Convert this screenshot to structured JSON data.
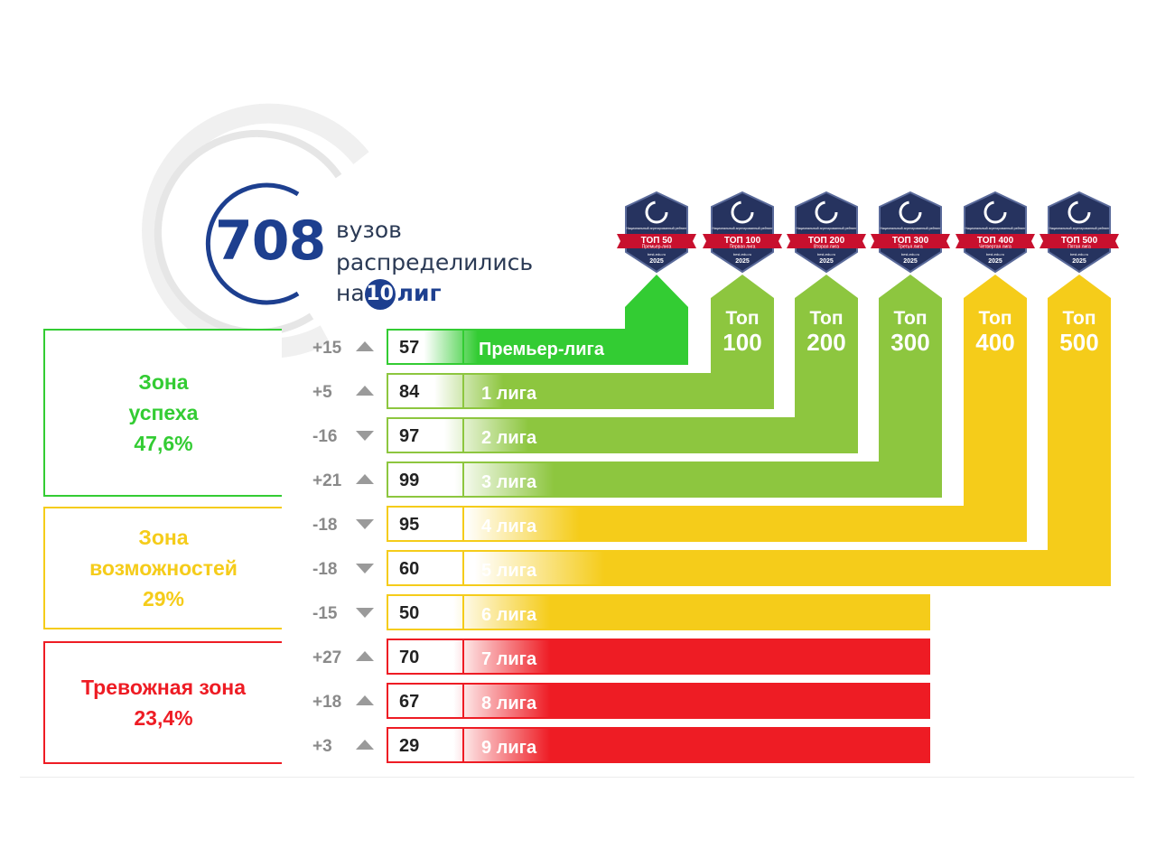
{
  "headline": {
    "total": "708",
    "line1": "вузов",
    "line2": "распределились",
    "line3_prefix": "на",
    "leagues_count": "10",
    "line3_suffix": "лиг"
  },
  "zones": [
    {
      "id": "success",
      "lines": [
        "Зона",
        "успеха",
        "47,6%"
      ],
      "color": "#33cc33"
    },
    {
      "id": "opportunity",
      "lines": [
        "Зона",
        "возможностей",
        "29%"
      ],
      "color": "#f5cc1a"
    },
    {
      "id": "alarm",
      "lines": [
        "Тревожная зона",
        "23,4%"
      ],
      "color": "#ee1c24"
    }
  ],
  "badges": [
    {
      "top": "ТОП 50",
      "league": "Премьер-лига",
      "year": "2025"
    },
    {
      "top": "ТОП 100",
      "league": "Первая лига",
      "year": "2025"
    },
    {
      "top": "ТОП 200",
      "league": "Вторая лига",
      "year": "2025"
    },
    {
      "top": "ТОП 300",
      "league": "Третья лига",
      "year": "2025"
    },
    {
      "top": "ТОП 400",
      "league": "Четвертая лига",
      "year": "2025"
    },
    {
      "top": "ТОП 500",
      "league": "Пятая лига",
      "year": "2025"
    }
  ],
  "badge_header": "Национальный агрегированный рейтинг",
  "badge_site": "best-edu.ru",
  "tops": [
    {
      "word": "Топ",
      "num": "100",
      "color": "#8dc63f"
    },
    {
      "word": "Топ",
      "num": "200",
      "color": "#8dc63f"
    },
    {
      "word": "Топ",
      "num": "300",
      "color": "#8dc63f"
    },
    {
      "word": "Топ",
      "num": "400",
      "color": "#f5cc1a"
    },
    {
      "word": "Топ",
      "num": "500",
      "color": "#f5cc1a"
    }
  ],
  "chart_data": {
    "type": "bar",
    "title": "708 вузов распределились на 10 лиг",
    "categories": [
      "Премьер-лига",
      "1 лига",
      "2 лига",
      "3 лига",
      "4 лига",
      "5 лига",
      "6 лига",
      "7 лига",
      "8 лига",
      "9 лига"
    ],
    "values": [
      57,
      84,
      97,
      99,
      95,
      60,
      50,
      70,
      67,
      29
    ],
    "change_labels": [
      "+15",
      "+5",
      "-16",
      "+21",
      "-18",
      "-18",
      "-15",
      "+27",
      "+18",
      "+3"
    ],
    "change_direction": [
      "up",
      "up",
      "down",
      "up",
      "down",
      "down",
      "down",
      "up",
      "up",
      "up"
    ],
    "colors": [
      "#33cc33",
      "#8dc63f",
      "#8dc63f",
      "#8dc63f",
      "#f5cc1a",
      "#f5cc1a",
      "#f5cc1a",
      "#ee1c24",
      "#ee1c24",
      "#ee1c24"
    ],
    "zones": [
      "Зона успеха",
      "Зона успеха",
      "Зона успеха",
      "Зона успеха",
      "Зона возможностей",
      "Зона возможностей",
      "Зона возможностей",
      "Тревожная зона",
      "Тревожная зона",
      "Тревожная зона"
    ],
    "xlabel": "",
    "ylabel": ""
  },
  "colors": {
    "navy": "#1d3f8f",
    "green": "#33cc33",
    "lightgreen": "#8dc63f",
    "yellow": "#f5cc1a",
    "red": "#ee1c24",
    "badge_red": "#c8102e",
    "badge_navy": "#26335f"
  }
}
